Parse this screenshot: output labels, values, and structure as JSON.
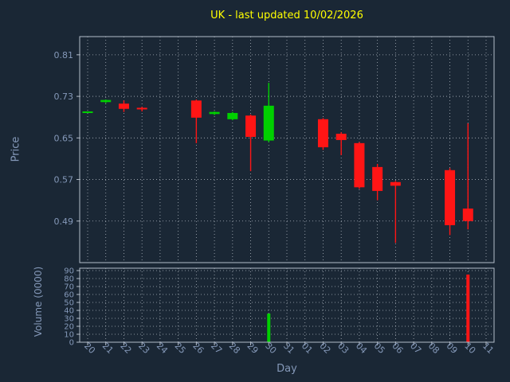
{
  "colors": {
    "background": "#1a2735",
    "title": "#ffff00",
    "text": "#8498b8",
    "frame": "#b3bcc9",
    "grid": "#e8eef5",
    "up": "#00d000",
    "down": "#ff1515"
  },
  "chart_data": {
    "type": "candlestick",
    "title": "UK - last updated 10/02/2026",
    "xlabel": "Day",
    "price_ylabel": "Price",
    "volume_ylabel": "Volume (0000)",
    "price_ticks": [
      0.81,
      0.73,
      0.65,
      0.57,
      0.49
    ],
    "price_ylim": [
      0.41,
      0.845
    ],
    "volume_ticks": [
      90,
      80,
      70,
      60,
      50,
      40,
      30,
      20,
      10,
      0
    ],
    "volume_ylim": [
      0,
      93
    ],
    "x_ticklabels": [
      "20",
      "21",
      "22",
      "23",
      "24",
      "25",
      "26",
      "27",
      "28",
      "29",
      "30",
      "31",
      "01",
      "02",
      "03",
      "04",
      "05",
      "06",
      "07",
      "08",
      "09",
      "10",
      "11"
    ],
    "candles": [
      {
        "day": "20",
        "open": 0.699,
        "high": 0.701,
        "low": 0.698,
        "close": 0.701,
        "dir": "up",
        "volume": 0
      },
      {
        "day": "21",
        "open": 0.719,
        "high": 0.724,
        "low": 0.717,
        "close": 0.723,
        "dir": "up",
        "volume": 0
      },
      {
        "day": "22",
        "open": 0.716,
        "high": 0.722,
        "low": 0.7,
        "close": 0.706,
        "dir": "down",
        "volume": 0
      },
      {
        "day": "23",
        "open": 0.708,
        "high": 0.71,
        "low": 0.701,
        "close": 0.705,
        "dir": "down",
        "volume": 0
      },
      {
        "day": "26",
        "open": 0.722,
        "high": 0.724,
        "low": 0.64,
        "close": 0.689,
        "dir": "down",
        "volume": 0
      },
      {
        "day": "27",
        "open": 0.696,
        "high": 0.701,
        "low": 0.694,
        "close": 0.7,
        "dir": "up",
        "volume": 0
      },
      {
        "day": "28",
        "open": 0.686,
        "high": 0.7,
        "low": 0.684,
        "close": 0.698,
        "dir": "up",
        "volume": 0
      },
      {
        "day": "29",
        "open": 0.693,
        "high": 0.695,
        "low": 0.586,
        "close": 0.652,
        "dir": "down",
        "volume": 0
      },
      {
        "day": "30",
        "open": 0.645,
        "high": 0.756,
        "low": 0.642,
        "close": 0.712,
        "dir": "up",
        "volume": 36
      },
      {
        "day": "02",
        "open": 0.686,
        "high": 0.688,
        "low": 0.627,
        "close": 0.632,
        "dir": "down",
        "volume": 0
      },
      {
        "day": "03",
        "open": 0.658,
        "high": 0.661,
        "low": 0.617,
        "close": 0.646,
        "dir": "down",
        "volume": 0
      },
      {
        "day": "04",
        "open": 0.64,
        "high": 0.642,
        "low": 0.552,
        "close": 0.555,
        "dir": "down",
        "volume": 0
      },
      {
        "day": "05",
        "open": 0.594,
        "high": 0.6,
        "low": 0.53,
        "close": 0.548,
        "dir": "down",
        "volume": 0
      },
      {
        "day": "06",
        "open": 0.565,
        "high": 0.567,
        "low": 0.448,
        "close": 0.558,
        "dir": "down",
        "volume": 0
      },
      {
        "day": "09",
        "open": 0.588,
        "high": 0.592,
        "low": 0.463,
        "close": 0.482,
        "dir": "down",
        "volume": 0
      },
      {
        "day": "10",
        "open": 0.514,
        "high": 0.678,
        "low": 0.474,
        "close": 0.49,
        "dir": "down",
        "volume": 85
      }
    ]
  }
}
